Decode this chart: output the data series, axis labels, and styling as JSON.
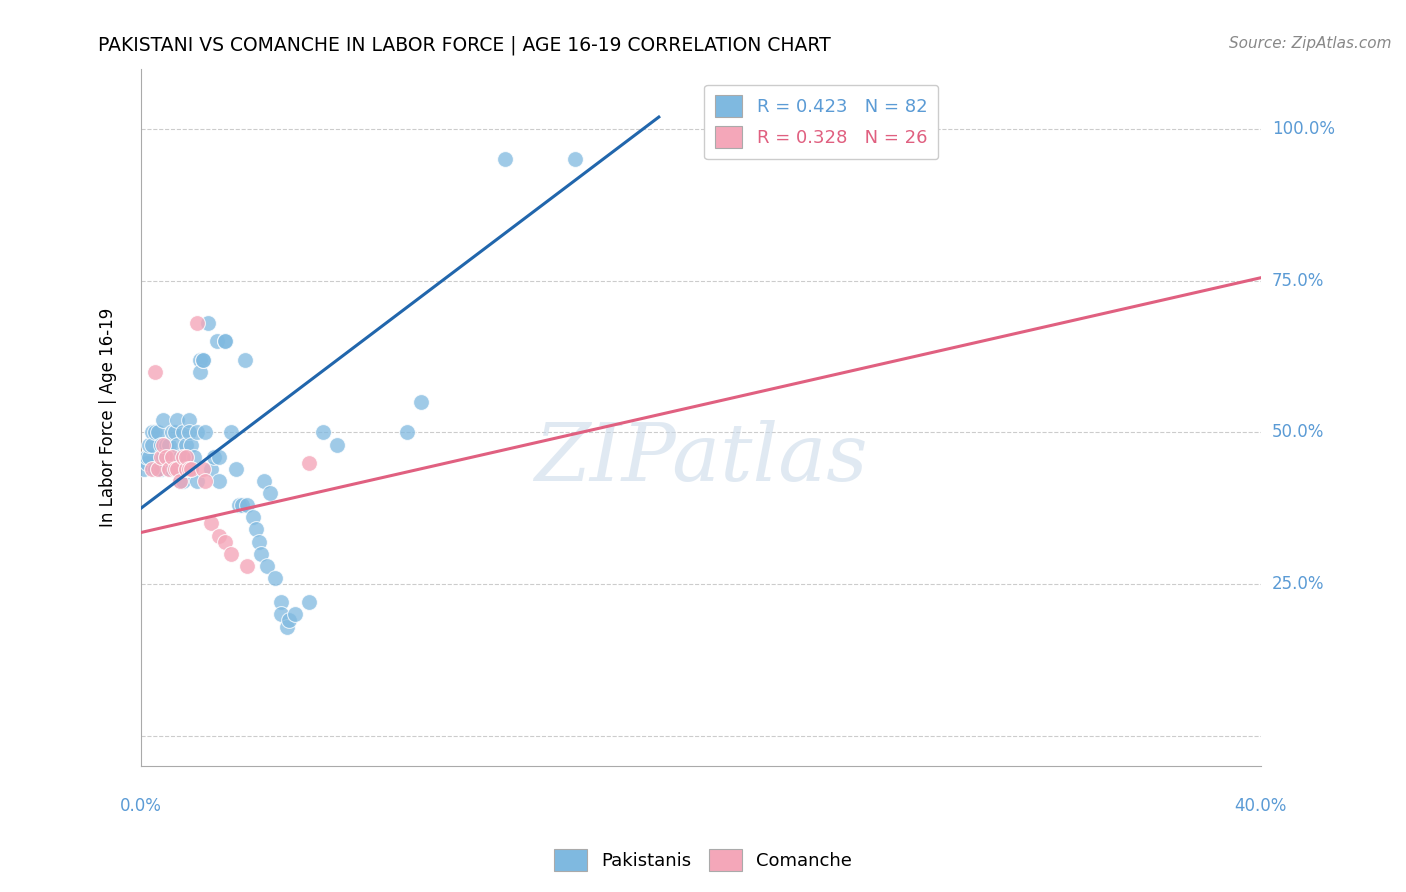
{
  "title": "PAKISTANI VS COMANCHE IN LABOR FORCE | AGE 16-19 CORRELATION CHART",
  "source": "Source: ZipAtlas.com",
  "ylabel": "In Labor Force | Age 16-19",
  "xlim": [
    0,
    0.4
  ],
  "ylim": [
    -0.05,
    1.1
  ],
  "legend_r_blue": "R = 0.423",
  "legend_n_blue": "N = 82",
  "legend_r_pink": "R = 0.328",
  "legend_n_pink": "N = 26",
  "watermark": "ZIPatlas",
  "blue_color": "#7fb9e0",
  "pink_color": "#f4a7b9",
  "blue_line_color": "#2166ac",
  "pink_line_color": "#e06080",
  "ytick_values": [
    0.0,
    0.25,
    0.5,
    0.75,
    1.0
  ],
  "ytick_labels": [
    "",
    "25.0%",
    "50.0%",
    "75.0%",
    "100.0%"
  ],
  "blue_scatter": [
    [
      0.001,
      0.44
    ],
    [
      0.002,
      0.45
    ],
    [
      0.002,
      0.46
    ],
    [
      0.003,
      0.46
    ],
    [
      0.003,
      0.48
    ],
    [
      0.004,
      0.5
    ],
    [
      0.004,
      0.48
    ],
    [
      0.005,
      0.5
    ],
    [
      0.005,
      0.44
    ],
    [
      0.006,
      0.44
    ],
    [
      0.006,
      0.5
    ],
    [
      0.007,
      0.48
    ],
    [
      0.007,
      0.44
    ],
    [
      0.008,
      0.52
    ],
    [
      0.008,
      0.46
    ],
    [
      0.009,
      0.46
    ],
    [
      0.009,
      0.48
    ],
    [
      0.01,
      0.44
    ],
    [
      0.01,
      0.48
    ],
    [
      0.01,
      0.46
    ],
    [
      0.011,
      0.5
    ],
    [
      0.011,
      0.44
    ],
    [
      0.012,
      0.46
    ],
    [
      0.012,
      0.5
    ],
    [
      0.013,
      0.52
    ],
    [
      0.013,
      0.48
    ],
    [
      0.014,
      0.46
    ],
    [
      0.014,
      0.44
    ],
    [
      0.014,
      0.42
    ],
    [
      0.015,
      0.5
    ],
    [
      0.015,
      0.44
    ],
    [
      0.015,
      0.42
    ],
    [
      0.016,
      0.48
    ],
    [
      0.016,
      0.46
    ],
    [
      0.016,
      0.44
    ],
    [
      0.017,
      0.52
    ],
    [
      0.017,
      0.5
    ],
    [
      0.018,
      0.44
    ],
    [
      0.018,
      0.48
    ],
    [
      0.018,
      0.44
    ],
    [
      0.019,
      0.46
    ],
    [
      0.02,
      0.5
    ],
    [
      0.02,
      0.42
    ],
    [
      0.021,
      0.62
    ],
    [
      0.021,
      0.6
    ],
    [
      0.022,
      0.62
    ],
    [
      0.022,
      0.62
    ],
    [
      0.023,
      0.5
    ],
    [
      0.024,
      0.68
    ],
    [
      0.025,
      0.44
    ],
    [
      0.026,
      0.46
    ],
    [
      0.027,
      0.65
    ],
    [
      0.028,
      0.46
    ],
    [
      0.028,
      0.42
    ],
    [
      0.03,
      0.65
    ],
    [
      0.03,
      0.65
    ],
    [
      0.032,
      0.5
    ],
    [
      0.034,
      0.44
    ],
    [
      0.035,
      0.38
    ],
    [
      0.036,
      0.38
    ],
    [
      0.037,
      0.62
    ],
    [
      0.038,
      0.38
    ],
    [
      0.04,
      0.36
    ],
    [
      0.041,
      0.34
    ],
    [
      0.042,
      0.32
    ],
    [
      0.043,
      0.3
    ],
    [
      0.044,
      0.42
    ],
    [
      0.045,
      0.28
    ],
    [
      0.046,
      0.4
    ],
    [
      0.048,
      0.26
    ],
    [
      0.05,
      0.22
    ],
    [
      0.05,
      0.2
    ],
    [
      0.052,
      0.18
    ],
    [
      0.053,
      0.19
    ],
    [
      0.055,
      0.2
    ],
    [
      0.06,
      0.22
    ],
    [
      0.065,
      0.5
    ],
    [
      0.07,
      0.48
    ],
    [
      0.095,
      0.5
    ],
    [
      0.1,
      0.55
    ],
    [
      0.13,
      0.95
    ],
    [
      0.155,
      0.95
    ]
  ],
  "pink_scatter": [
    [
      0.004,
      0.44
    ],
    [
      0.005,
      0.6
    ],
    [
      0.006,
      0.44
    ],
    [
      0.007,
      0.46
    ],
    [
      0.008,
      0.48
    ],
    [
      0.009,
      0.46
    ],
    [
      0.01,
      0.44
    ],
    [
      0.011,
      0.46
    ],
    [
      0.012,
      0.44
    ],
    [
      0.013,
      0.44
    ],
    [
      0.014,
      0.42
    ],
    [
      0.015,
      0.46
    ],
    [
      0.016,
      0.44
    ],
    [
      0.016,
      0.46
    ],
    [
      0.017,
      0.44
    ],
    [
      0.018,
      0.44
    ],
    [
      0.02,
      0.68
    ],
    [
      0.022,
      0.44
    ],
    [
      0.023,
      0.42
    ],
    [
      0.025,
      0.35
    ],
    [
      0.028,
      0.33
    ],
    [
      0.03,
      0.32
    ],
    [
      0.032,
      0.3
    ],
    [
      0.038,
      0.28
    ],
    [
      0.06,
      0.45
    ],
    [
      0.215,
      1.0
    ]
  ],
  "blue_trendline_x": [
    0.0,
    0.185
  ],
  "blue_trendline_y": [
    0.375,
    1.02
  ],
  "pink_trendline_x": [
    0.0,
    0.4
  ],
  "pink_trendline_y": [
    0.335,
    0.755
  ]
}
